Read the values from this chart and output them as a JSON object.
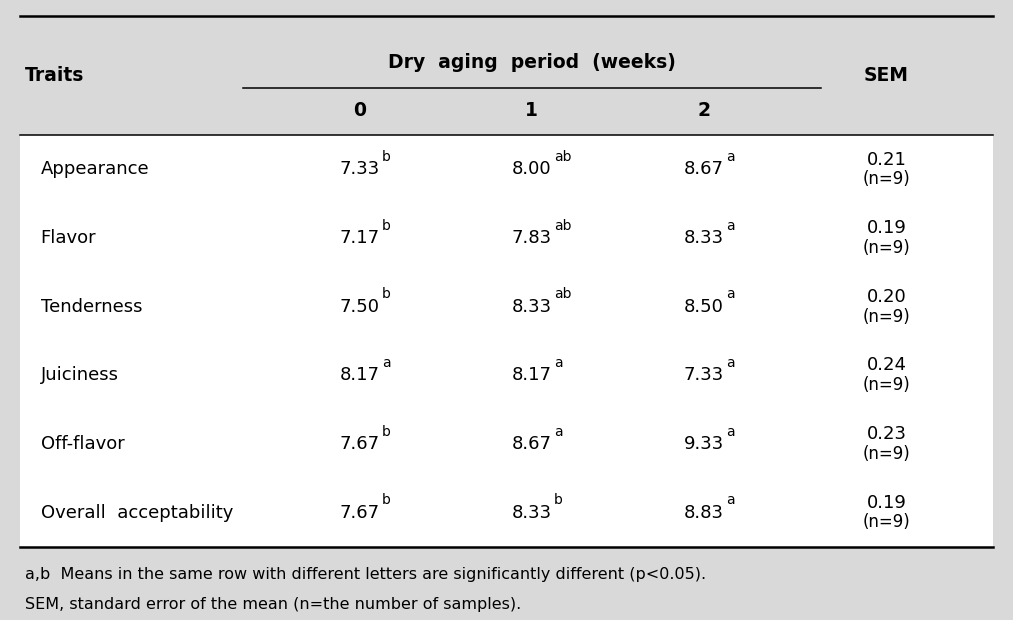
{
  "title": "Dry  aging  period  (weeks)",
  "header_col": "Traits",
  "header_periods": [
    "0",
    "1",
    "2"
  ],
  "header_sem": "SEM",
  "bg_color": "#d9d9d9",
  "row_bg": "#ffffff",
  "rows": [
    {
      "trait": "Appearance",
      "v0": "7.33",
      "v0_sup": "b",
      "v1": "8.00",
      "v1_sup": "ab",
      "v2": "8.67",
      "v2_sup": "a",
      "sem": "0.21",
      "n": "(n=9)"
    },
    {
      "trait": "Flavor",
      "v0": "7.17",
      "v0_sup": "b",
      "v1": "7.83",
      "v1_sup": "ab",
      "v2": "8.33",
      "v2_sup": "a",
      "sem": "0.19",
      "n": "(n=9)"
    },
    {
      "trait": "Tenderness",
      "v0": "7.50",
      "v0_sup": "b",
      "v1": "8.33",
      "v1_sup": "ab",
      "v2": "8.50",
      "v2_sup": "a",
      "sem": "0.20",
      "n": "(n=9)"
    },
    {
      "trait": "Juiciness",
      "v0": "8.17",
      "v0_sup": "a",
      "v1": "8.17",
      "v1_sup": "a",
      "v2": "7.33",
      "v2_sup": "a",
      "sem": "0.24",
      "n": "(n=9)"
    },
    {
      "trait": "Off-flavor",
      "v0": "7.67",
      "v0_sup": "b",
      "v1": "8.67",
      "v1_sup": "a",
      "v2": "9.33",
      "v2_sup": "a",
      "sem": "0.23",
      "n": "(n=9)"
    },
    {
      "trait": "Overall  acceptability",
      "v0": "7.67",
      "v0_sup": "b",
      "v1": "8.33",
      "v1_sup": "b",
      "v2": "8.83",
      "v2_sup": "a",
      "sem": "0.19",
      "n": "(n=9)"
    }
  ],
  "footnote1": "a,b  Means in the same row with different letters are significantly different (p<0.05).",
  "footnote2": "SEM, standard error of the mean (n=the number of samples).",
  "font_family": "Times New Roman",
  "main_fontsize": 13,
  "header_fontsize": 13.5,
  "footnote_fontsize": 11.5
}
